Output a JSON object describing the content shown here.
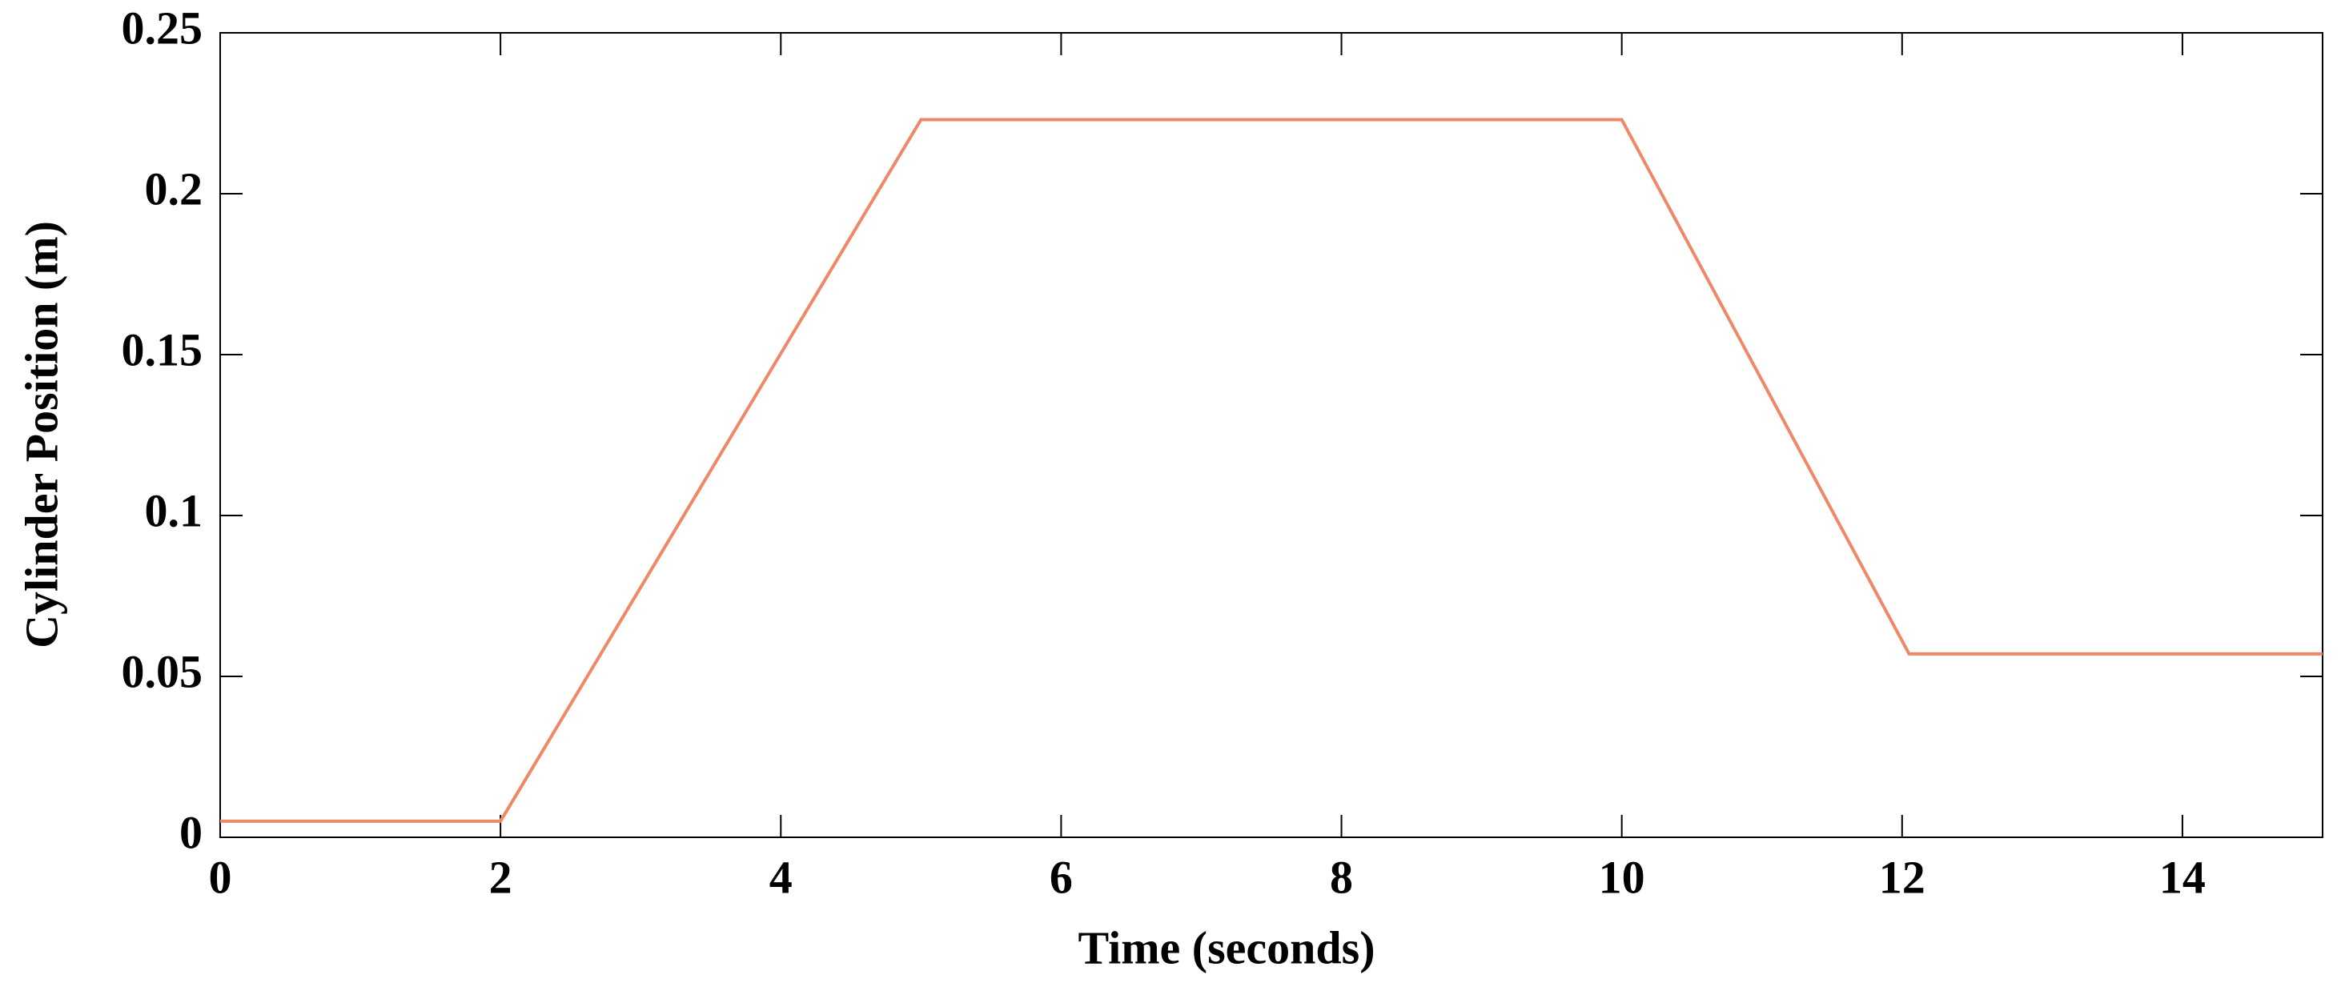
{
  "chart_data": {
    "type": "line",
    "xlabel": "Time (seconds)",
    "ylabel": "Cylinder Position (m)",
    "x": [
      0,
      2,
      5,
      10,
      12.05,
      15
    ],
    "values": [
      0.005,
      0.005,
      0.223,
      0.223,
      0.057,
      0.057
    ],
    "color": "#ee8866",
    "xlim": [
      0,
      15
    ],
    "xticks": [
      0,
      2,
      4,
      6,
      8,
      10,
      12,
      14
    ],
    "ylim": [
      0,
      0.25
    ],
    "yticks": [
      0,
      0.05,
      0.1,
      0.15,
      0.2,
      0.25
    ],
    "grid": false
  }
}
